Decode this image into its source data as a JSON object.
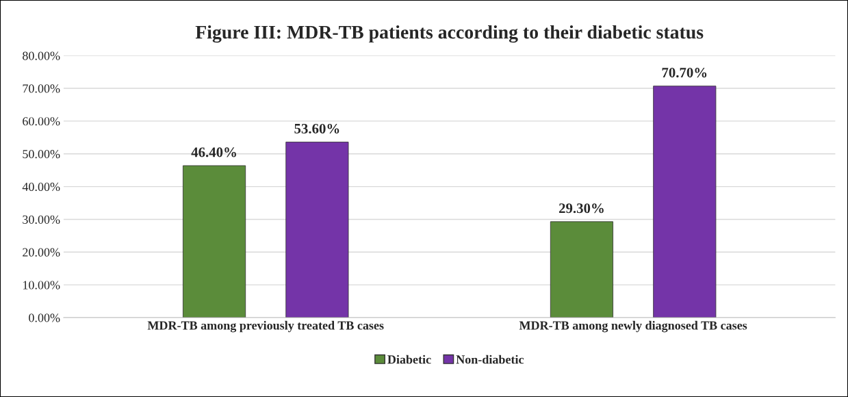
{
  "chart_data": {
    "type": "bar",
    "title": "Figure III: MDR-TB patients according to their diabetic status",
    "categories": [
      "MDR-TB among previously treated TB cases",
      "MDR-TB among newly diagnosed TB cases"
    ],
    "series": [
      {
        "name": "Diabetic",
        "color": "#5b8c3a",
        "values": [
          46.4,
          29.3
        ],
        "value_labels": [
          "46.40%",
          "29.30%"
        ]
      },
      {
        "name": "Non-diabetic",
        "color": "#7434a8",
        "values": [
          53.6,
          70.7
        ],
        "value_labels": [
          "53.60%",
          "70.70%"
        ]
      }
    ],
    "ylim": [
      0,
      80
    ],
    "yticks": [
      {
        "value": 0,
        "label": "0.00%"
      },
      {
        "value": 10,
        "label": "10.00%"
      },
      {
        "value": 20,
        "label": "20.00%"
      },
      {
        "value": 30,
        "label": "30.00%"
      },
      {
        "value": 40,
        "label": "40.00%"
      },
      {
        "value": 50,
        "label": "50.00%"
      },
      {
        "value": 60,
        "label": "60.00%"
      },
      {
        "value": 70,
        "label": "70.00%"
      },
      {
        "value": 80,
        "label": "80.00%"
      }
    ],
    "grid": "y",
    "legend": "bottom"
  }
}
